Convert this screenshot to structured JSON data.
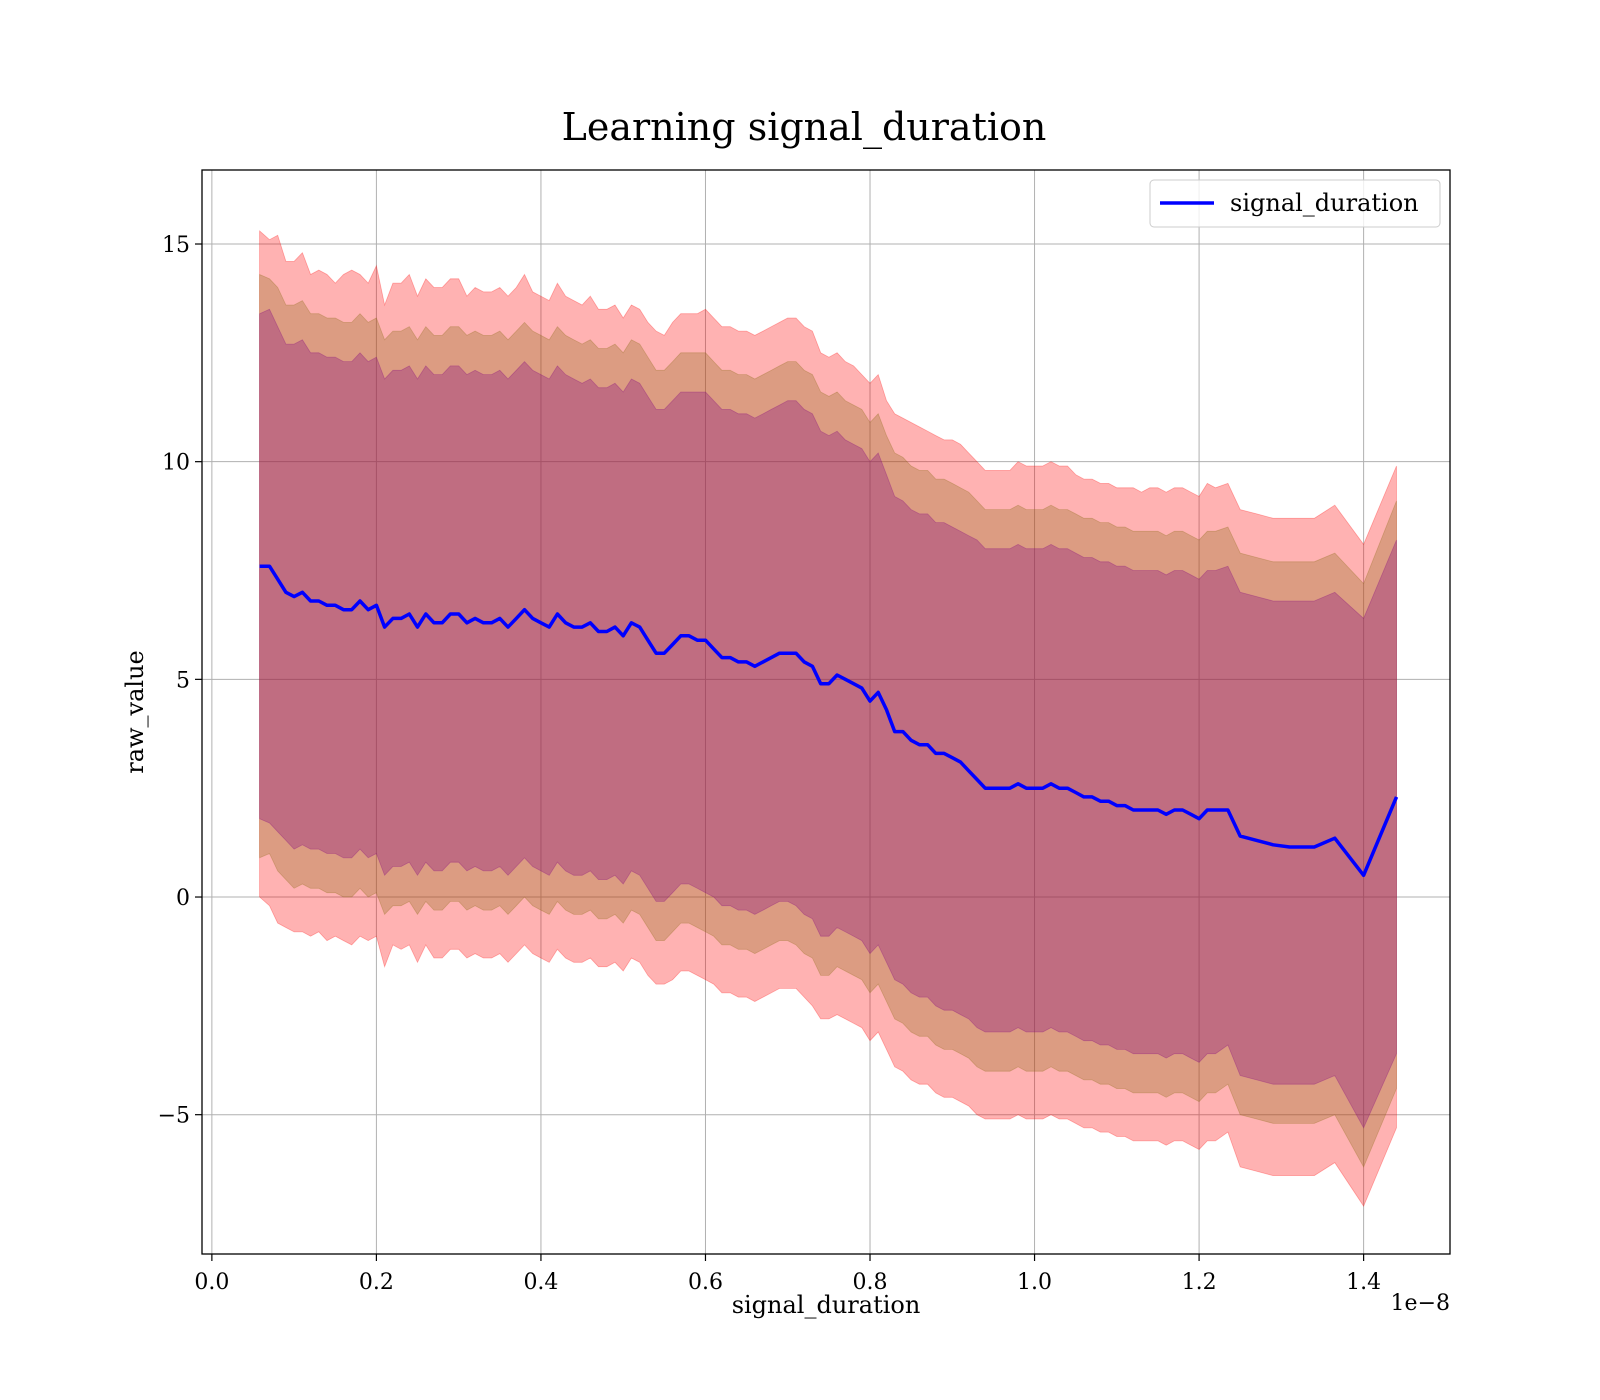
{
  "chart_data": {
    "type": "line",
    "title": "Learning signal_duration",
    "xlabel": "signal_duration",
    "ylabel": "raw_value",
    "x_offset_label": "1e−8",
    "xlim": [
      -0.012,
      1.505
    ],
    "ylim": [
      -8.2,
      16.7
    ],
    "x_ticks": [
      0.0,
      0.2,
      0.4,
      0.6,
      0.8,
      1.0,
      1.2,
      1.4
    ],
    "x_tick_labels": [
      "0.0",
      "0.2",
      "0.4",
      "0.6",
      "0.8",
      "1.0",
      "1.2",
      "1.4"
    ],
    "y_ticks": [
      -5,
      0,
      5,
      10,
      15
    ],
    "y_tick_labels": [
      "−5",
      "0",
      "5",
      "10",
      "15"
    ],
    "grid": true,
    "legend_position": "top-right",
    "colors": {
      "line": "#0000ff",
      "band_outer": "#ff0000",
      "band_middle": "#8b6914",
      "band_inner": "#800080"
    },
    "series": [
      {
        "name": "signal_duration",
        "x": [
          0.058,
          0.07,
          0.08,
          0.09,
          0.1,
          0.11,
          0.12,
          0.13,
          0.14,
          0.15,
          0.16,
          0.17,
          0.18,
          0.19,
          0.2,
          0.21,
          0.22,
          0.23,
          0.24,
          0.25,
          0.26,
          0.27,
          0.28,
          0.29,
          0.3,
          0.31,
          0.32,
          0.33,
          0.34,
          0.35,
          0.36,
          0.37,
          0.38,
          0.39,
          0.4,
          0.41,
          0.42,
          0.43,
          0.44,
          0.45,
          0.46,
          0.47,
          0.48,
          0.49,
          0.5,
          0.51,
          0.52,
          0.53,
          0.54,
          0.55,
          0.56,
          0.57,
          0.58,
          0.59,
          0.6,
          0.61,
          0.62,
          0.63,
          0.64,
          0.65,
          0.66,
          0.67,
          0.68,
          0.69,
          0.7,
          0.71,
          0.72,
          0.73,
          0.74,
          0.75,
          0.76,
          0.77,
          0.78,
          0.79,
          0.8,
          0.81,
          0.82,
          0.83,
          0.84,
          0.85,
          0.86,
          0.87,
          0.88,
          0.89,
          0.9,
          0.91,
          0.92,
          0.93,
          0.94,
          0.95,
          0.96,
          0.97,
          0.98,
          0.99,
          1.0,
          1.01,
          1.02,
          1.03,
          1.04,
          1.05,
          1.06,
          1.07,
          1.08,
          1.09,
          1.1,
          1.11,
          1.12,
          1.13,
          1.14,
          1.15,
          1.16,
          1.17,
          1.18,
          1.19,
          1.2,
          1.21,
          1.22,
          1.235,
          1.25,
          1.27,
          1.29,
          1.31,
          1.34,
          1.365,
          1.4,
          1.44
        ],
        "mean": [
          7.6,
          7.6,
          7.3,
          7.0,
          6.9,
          7.0,
          6.8,
          6.8,
          6.7,
          6.7,
          6.6,
          6.6,
          6.8,
          6.6,
          6.7,
          6.2,
          6.4,
          6.4,
          6.5,
          6.2,
          6.5,
          6.3,
          6.3,
          6.5,
          6.5,
          6.3,
          6.4,
          6.3,
          6.3,
          6.4,
          6.2,
          6.4,
          6.6,
          6.4,
          6.3,
          6.2,
          6.5,
          6.3,
          6.2,
          6.2,
          6.3,
          6.1,
          6.1,
          6.2,
          6.0,
          6.3,
          6.2,
          5.9,
          5.6,
          5.6,
          5.8,
          6.0,
          6.0,
          5.9,
          5.9,
          5.7,
          5.5,
          5.5,
          5.4,
          5.4,
          5.3,
          5.4,
          5.5,
          5.6,
          5.6,
          5.6,
          5.4,
          5.3,
          4.9,
          4.9,
          5.1,
          5.0,
          4.9,
          4.8,
          4.5,
          4.7,
          4.3,
          3.8,
          3.8,
          3.6,
          3.5,
          3.5,
          3.3,
          3.3,
          3.2,
          3.1,
          2.9,
          2.7,
          2.5,
          2.5,
          2.5,
          2.5,
          2.6,
          2.5,
          2.5,
          2.5,
          2.6,
          2.5,
          2.5,
          2.4,
          2.3,
          2.3,
          2.2,
          2.2,
          2.1,
          2.1,
          2.0,
          2.0,
          2.0,
          2.0,
          1.9,
          2.0,
          2.0,
          1.9,
          1.8,
          2.0,
          2.0,
          2.0,
          1.4,
          1.3,
          1.2,
          1.15,
          1.15,
          1.35,
          0.5,
          2.3
        ],
        "outer_upper": [
          15.3,
          15.1,
          15.2,
          14.6,
          14.6,
          14.8,
          14.3,
          14.4,
          14.3,
          14.1,
          14.3,
          14.4,
          14.3,
          14.1,
          14.5,
          13.6,
          14.1,
          14.1,
          14.3,
          13.8,
          14.2,
          14.0,
          14.0,
          14.2,
          14.2,
          13.8,
          14.0,
          13.9,
          13.9,
          14.0,
          13.8,
          14.0,
          14.3,
          13.9,
          13.8,
          13.7,
          14.1,
          13.8,
          13.7,
          13.6,
          13.8,
          13.5,
          13.5,
          13.6,
          13.3,
          13.6,
          13.5,
          13.2,
          13.0,
          12.9,
          13.2,
          13.4,
          13.4,
          13.4,
          13.5,
          13.3,
          13.1,
          13.1,
          13.0,
          13.0,
          12.9,
          13.0,
          13.1,
          13.2,
          13.3,
          13.3,
          13.1,
          13.0,
          12.5,
          12.4,
          12.5,
          12.3,
          12.2,
          12.0,
          11.8,
          12.0,
          11.4,
          11.1,
          11.0,
          10.9,
          10.8,
          10.7,
          10.6,
          10.5,
          10.5,
          10.4,
          10.2,
          10.0,
          9.8,
          9.8,
          9.8,
          9.8,
          10.0,
          9.9,
          9.9,
          9.9,
          10.0,
          9.9,
          9.9,
          9.7,
          9.6,
          9.6,
          9.5,
          9.5,
          9.4,
          9.4,
          9.4,
          9.3,
          9.4,
          9.4,
          9.3,
          9.4,
          9.4,
          9.3,
          9.2,
          9.5,
          9.4,
          9.5,
          8.9,
          8.8,
          8.7,
          8.7,
          8.7,
          9.0,
          8.1,
          9.9
        ],
        "outer_lower": [
          0.0,
          -0.2,
          -0.6,
          -0.7,
          -0.8,
          -0.8,
          -0.9,
          -0.8,
          -1.0,
          -0.9,
          -1.0,
          -1.1,
          -0.9,
          -1.0,
          -0.9,
          -1.6,
          -1.1,
          -1.2,
          -1.1,
          -1.5,
          -1.1,
          -1.4,
          -1.4,
          -1.2,
          -1.2,
          -1.4,
          -1.3,
          -1.4,
          -1.4,
          -1.3,
          -1.5,
          -1.3,
          -1.1,
          -1.3,
          -1.4,
          -1.5,
          -1.2,
          -1.4,
          -1.5,
          -1.5,
          -1.4,
          -1.6,
          -1.6,
          -1.5,
          -1.7,
          -1.4,
          -1.5,
          -1.8,
          -2.0,
          -2.0,
          -1.9,
          -1.7,
          -1.7,
          -1.8,
          -1.9,
          -2.0,
          -2.2,
          -2.2,
          -2.3,
          -2.3,
          -2.4,
          -2.3,
          -2.2,
          -2.1,
          -2.1,
          -2.1,
          -2.3,
          -2.5,
          -2.8,
          -2.8,
          -2.7,
          -2.8,
          -2.9,
          -3.0,
          -3.3,
          -3.1,
          -3.5,
          -3.9,
          -4.0,
          -4.2,
          -4.3,
          -4.3,
          -4.5,
          -4.6,
          -4.6,
          -4.7,
          -4.8,
          -5.0,
          -5.1,
          -5.1,
          -5.1,
          -5.1,
          -5.0,
          -5.1,
          -5.1,
          -5.1,
          -5.0,
          -5.1,
          -5.1,
          -5.2,
          -5.3,
          -5.3,
          -5.4,
          -5.4,
          -5.5,
          -5.5,
          -5.6,
          -5.6,
          -5.6,
          -5.6,
          -5.7,
          -5.6,
          -5.6,
          -5.7,
          -5.8,
          -5.6,
          -5.6,
          -5.4,
          -6.2,
          -6.3,
          -6.4,
          -6.4,
          -6.4,
          -6.1,
          -7.1,
          -5.3
        ],
        "middle_upper": [
          14.3,
          14.2,
          14.0,
          13.6,
          13.6,
          13.7,
          13.4,
          13.4,
          13.3,
          13.3,
          13.2,
          13.2,
          13.4,
          13.2,
          13.3,
          12.8,
          13.0,
          13.0,
          13.1,
          12.8,
          13.1,
          12.9,
          12.9,
          13.1,
          13.1,
          12.9,
          13.0,
          12.9,
          12.9,
          13.0,
          12.8,
          13.0,
          13.2,
          13.0,
          12.9,
          12.8,
          13.1,
          12.9,
          12.8,
          12.7,
          12.8,
          12.6,
          12.6,
          12.7,
          12.5,
          12.8,
          12.7,
          12.4,
          12.1,
          12.1,
          12.3,
          12.5,
          12.5,
          12.5,
          12.5,
          12.3,
          12.1,
          12.1,
          12.0,
          12.0,
          11.9,
          12.0,
          12.1,
          12.2,
          12.3,
          12.3,
          12.1,
          12.0,
          11.6,
          11.5,
          11.6,
          11.4,
          11.3,
          11.2,
          10.9,
          11.1,
          10.6,
          10.2,
          10.1,
          9.9,
          9.8,
          9.8,
          9.6,
          9.6,
          9.5,
          9.4,
          9.3,
          9.1,
          8.9,
          8.9,
          8.9,
          8.9,
          9.0,
          8.9,
          8.9,
          8.9,
          9.0,
          8.9,
          8.9,
          8.8,
          8.7,
          8.7,
          8.6,
          8.6,
          8.5,
          8.5,
          8.4,
          8.4,
          8.4,
          8.4,
          8.3,
          8.4,
          8.4,
          8.3,
          8.2,
          8.4,
          8.4,
          8.5,
          7.9,
          7.8,
          7.7,
          7.7,
          7.7,
          7.9,
          7.2,
          9.1
        ],
        "middle_lower": [
          0.9,
          1.0,
          0.6,
          0.4,
          0.2,
          0.3,
          0.2,
          0.2,
          0.1,
          0.1,
          0.0,
          0.0,
          0.2,
          0.0,
          0.1,
          -0.4,
          -0.2,
          -0.2,
          -0.1,
          -0.4,
          -0.1,
          -0.3,
          -0.3,
          -0.1,
          -0.1,
          -0.3,
          -0.2,
          -0.3,
          -0.3,
          -0.2,
          -0.4,
          -0.2,
          0.0,
          -0.2,
          -0.3,
          -0.4,
          -0.1,
          -0.3,
          -0.4,
          -0.4,
          -0.3,
          -0.5,
          -0.5,
          -0.4,
          -0.6,
          -0.3,
          -0.4,
          -0.7,
          -1.0,
          -1.0,
          -0.8,
          -0.6,
          -0.6,
          -0.7,
          -0.8,
          -0.9,
          -1.1,
          -1.1,
          -1.2,
          -1.2,
          -1.3,
          -1.2,
          -1.1,
          -1.0,
          -1.0,
          -1.1,
          -1.3,
          -1.4,
          -1.8,
          -1.8,
          -1.6,
          -1.7,
          -1.8,
          -1.9,
          -2.2,
          -2.0,
          -2.4,
          -2.8,
          -2.9,
          -3.1,
          -3.2,
          -3.2,
          -3.4,
          -3.5,
          -3.5,
          -3.6,
          -3.7,
          -3.9,
          -4.0,
          -4.0,
          -4.0,
          -4.0,
          -3.9,
          -4.0,
          -4.0,
          -4.0,
          -3.9,
          -4.0,
          -4.0,
          -4.1,
          -4.2,
          -4.2,
          -4.3,
          -4.3,
          -4.4,
          -4.4,
          -4.5,
          -4.5,
          -4.5,
          -4.5,
          -4.6,
          -4.5,
          -4.5,
          -4.6,
          -4.7,
          -4.5,
          -4.5,
          -4.3,
          -5.0,
          -5.1,
          -5.2,
          -5.2,
          -5.2,
          -5.0,
          -6.2,
          -4.4
        ],
        "inner_upper": [
          13.4,
          13.5,
          13.1,
          12.7,
          12.7,
          12.8,
          12.5,
          12.5,
          12.4,
          12.4,
          12.3,
          12.3,
          12.5,
          12.3,
          12.4,
          11.9,
          12.1,
          12.1,
          12.2,
          11.9,
          12.2,
          12.0,
          12.0,
          12.2,
          12.2,
          12.0,
          12.1,
          12.0,
          12.0,
          12.1,
          11.9,
          12.1,
          12.3,
          12.1,
          12.0,
          11.9,
          12.2,
          12.0,
          11.9,
          11.8,
          11.9,
          11.7,
          11.7,
          11.8,
          11.6,
          11.9,
          11.8,
          11.5,
          11.2,
          11.2,
          11.4,
          11.6,
          11.6,
          11.6,
          11.6,
          11.4,
          11.2,
          11.2,
          11.1,
          11.1,
          11.0,
          11.1,
          11.2,
          11.3,
          11.4,
          11.4,
          11.2,
          11.1,
          10.7,
          10.6,
          10.7,
          10.5,
          10.4,
          10.3,
          10.0,
          10.2,
          9.7,
          9.2,
          9.1,
          8.9,
          8.8,
          8.8,
          8.6,
          8.6,
          8.5,
          8.4,
          8.3,
          8.2,
          8.0,
          8.0,
          8.0,
          8.0,
          8.1,
          8.0,
          8.0,
          8.0,
          8.1,
          8.0,
          8.0,
          7.9,
          7.8,
          7.8,
          7.7,
          7.7,
          7.6,
          7.6,
          7.5,
          7.5,
          7.5,
          7.5,
          7.4,
          7.5,
          7.5,
          7.4,
          7.3,
          7.5,
          7.5,
          7.6,
          7.0,
          6.9,
          6.8,
          6.8,
          6.8,
          7.0,
          6.4,
          8.2
        ],
        "inner_lower": [
          1.8,
          1.7,
          1.5,
          1.3,
          1.1,
          1.2,
          1.1,
          1.1,
          1.0,
          1.0,
          0.9,
          0.9,
          1.1,
          0.9,
          1.0,
          0.5,
          0.7,
          0.7,
          0.8,
          0.5,
          0.8,
          0.6,
          0.6,
          0.8,
          0.8,
          0.6,
          0.7,
          0.6,
          0.6,
          0.7,
          0.5,
          0.7,
          0.9,
          0.7,
          0.6,
          0.5,
          0.8,
          0.6,
          0.5,
          0.5,
          0.6,
          0.4,
          0.4,
          0.5,
          0.3,
          0.6,
          0.5,
          0.2,
          -0.1,
          -0.1,
          0.1,
          0.3,
          0.3,
          0.2,
          0.1,
          0.0,
          -0.2,
          -0.2,
          -0.3,
          -0.3,
          -0.4,
          -0.3,
          -0.2,
          -0.1,
          -0.1,
          -0.2,
          -0.4,
          -0.5,
          -0.9,
          -0.9,
          -0.7,
          -0.8,
          -0.9,
          -1.0,
          -1.3,
          -1.1,
          -1.5,
          -1.9,
          -2.0,
          -2.2,
          -2.3,
          -2.3,
          -2.5,
          -2.6,
          -2.6,
          -2.7,
          -2.8,
          -3.0,
          -3.1,
          -3.1,
          -3.1,
          -3.1,
          -3.0,
          -3.1,
          -3.1,
          -3.1,
          -3.0,
          -3.1,
          -3.1,
          -3.2,
          -3.3,
          -3.3,
          -3.4,
          -3.4,
          -3.5,
          -3.5,
          -3.6,
          -3.6,
          -3.6,
          -3.6,
          -3.7,
          -3.6,
          -3.6,
          -3.7,
          -3.8,
          -3.6,
          -3.6,
          -3.4,
          -4.1,
          -4.2,
          -4.3,
          -4.3,
          -4.3,
          -4.1,
          -5.3,
          -3.6
        ]
      }
    ]
  }
}
